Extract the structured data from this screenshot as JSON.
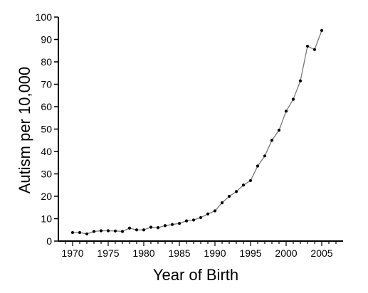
{
  "chart_data": {
    "type": "line",
    "title": "",
    "xlabel": "Year of Birth",
    "ylabel": "Autism per 10,000",
    "xlim": [
      1968,
      2008
    ],
    "ylim": [
      0,
      100
    ],
    "x_ticks": [
      1970,
      1975,
      1980,
      1985,
      1990,
      1995,
      2000,
      2005
    ],
    "y_ticks": [
      0,
      10,
      20,
      30,
      40,
      50,
      60,
      70,
      80,
      90,
      100
    ],
    "grid": false,
    "legend": "none",
    "series": [
      {
        "x": [
          1970,
          1971,
          1972,
          1973,
          1974,
          1975,
          1976,
          1977,
          1978,
          1979,
          1980,
          1981,
          1982,
          1983,
          1984,
          1985,
          1986,
          1987,
          1988,
          1989,
          1990,
          1991,
          1992,
          1993,
          1994,
          1995,
          1996,
          1997,
          1998,
          1999,
          2000,
          2001,
          2002,
          2003,
          2004,
          2005
        ],
        "y": [
          3.8,
          3.8,
          3.2,
          4.3,
          4.6,
          4.6,
          4.5,
          4.3,
          5.8,
          5.0,
          5.0,
          6.2,
          6.0,
          6.9,
          7.4,
          7.9,
          9.0,
          9.4,
          10.5,
          12.1,
          13.5,
          17.1,
          20.0,
          22.1,
          25.0,
          27.0,
          33.5,
          38.0,
          45.0,
          49.5,
          58.0,
          63.3,
          71.5,
          87.0,
          85.5,
          94.0
        ]
      }
    ],
    "colors": {
      "line": "#7a7a7a",
      "marker": "#000000",
      "axis": "#000000"
    }
  }
}
